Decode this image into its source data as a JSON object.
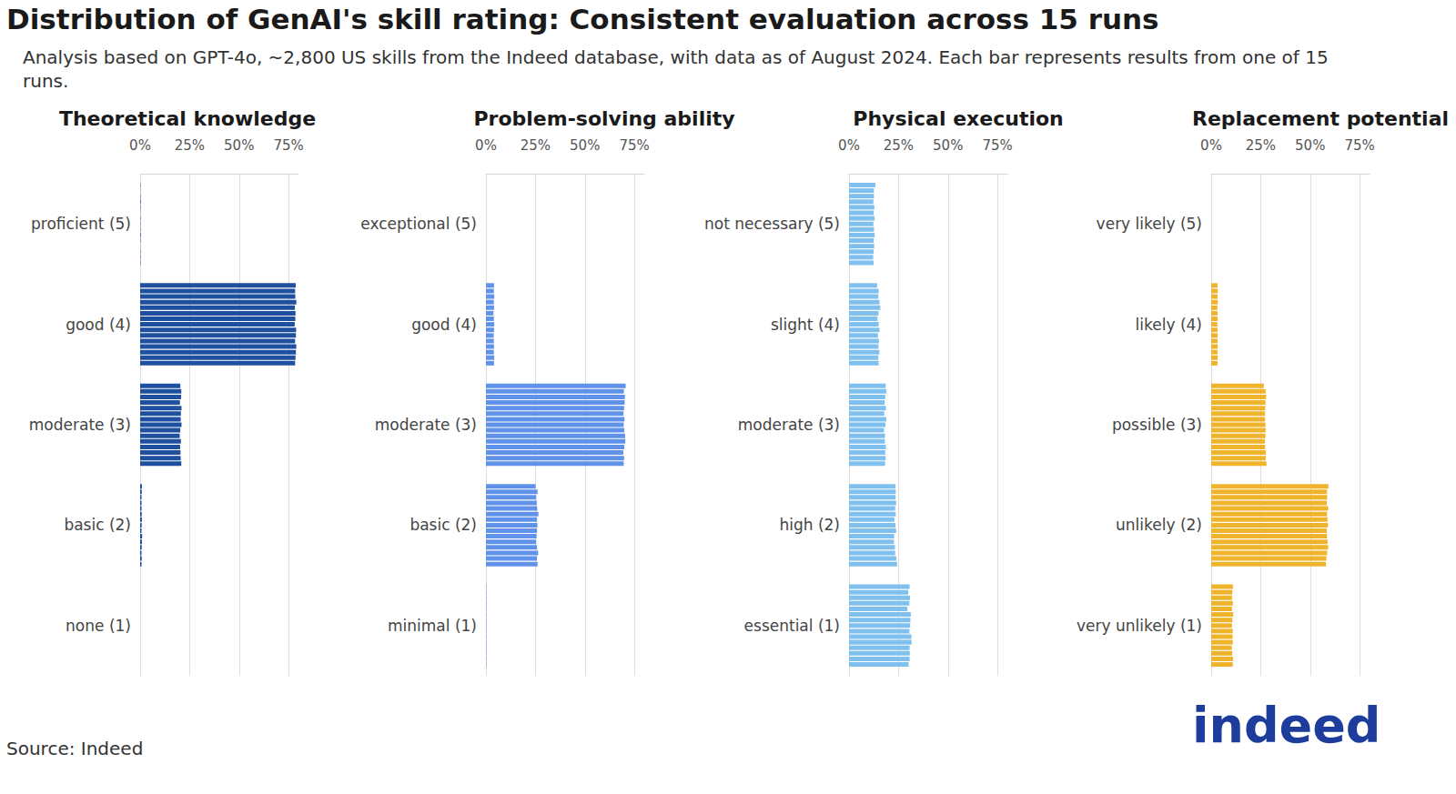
{
  "title": "Distribution of GenAI's skill rating: Consistent evaluation across 15 runs",
  "subtitle": "Analysis based on GPT-4o, ~2,800 US skills from the Indeed database, with data as of August 2024. Each bar represents results from one of 15 runs.",
  "source": "Source: Indeed",
  "logo": "indeed",
  "chart_data": [
    {
      "type": "bar",
      "orientation": "horizontal",
      "title": "Theoretical knowledge",
      "color": "#1f4f9f",
      "grid": true,
      "categories": [
        "proficient (5)",
        "good (4)",
        "moderate (3)",
        "basic (2)",
        "none (1)"
      ],
      "xlim": [
        0,
        80
      ],
      "xticks": [
        {
          "value": 0,
          "label": "0%"
        },
        {
          "value": 25,
          "label": "25%"
        },
        {
          "value": 50,
          "label": "50%"
        },
        {
          "value": 75,
          "label": "75%"
        }
      ],
      "series": [
        {
          "values": [
            0.2,
            78.6,
            20.3,
            0.9,
            0
          ]
        },
        {
          "values": [
            0.1,
            78.3,
            20.8,
            0.8,
            0
          ]
        },
        {
          "values": [
            0.2,
            78.4,
            20.7,
            0.7,
            0
          ]
        },
        {
          "values": [
            0.3,
            78.9,
            20.1,
            0.7,
            0
          ]
        },
        {
          "values": [
            0.2,
            78.2,
            20.9,
            0.7,
            0
          ]
        },
        {
          "values": [
            0.1,
            78.5,
            20.6,
            0.8,
            0
          ]
        },
        {
          "values": [
            0.2,
            78.4,
            20.5,
            0.9,
            0
          ]
        },
        {
          "values": [
            0.2,
            78.1,
            20.9,
            0.8,
            0
          ]
        },
        {
          "values": [
            0.2,
            78.8,
            20.3,
            0.7,
            0
          ]
        },
        {
          "values": [
            0.3,
            78.7,
            20.0,
            1.0,
            0
          ]
        },
        {
          "values": [
            0.2,
            78.3,
            20.6,
            0.9,
            0
          ]
        },
        {
          "values": [
            0.1,
            78.9,
            20.2,
            0.8,
            0
          ]
        },
        {
          "values": [
            0.2,
            78.7,
            20.4,
            0.7,
            0
          ]
        },
        {
          "values": [
            0.2,
            78.5,
            20.5,
            0.8,
            0
          ]
        },
        {
          "values": [
            0.2,
            78.3,
            20.8,
            0.7,
            0
          ]
        }
      ]
    },
    {
      "type": "bar",
      "orientation": "horizontal",
      "title": "Problem-solving ability",
      "color": "#6192ea",
      "grid": true,
      "categories": [
        "exceptional (5)",
        "good (4)",
        "moderate (3)",
        "basic (2)",
        "minimal (1)"
      ],
      "xlim": [
        0,
        80
      ],
      "xticks": [
        {
          "value": 0,
          "label": "0%"
        },
        {
          "value": 25,
          "label": "25%"
        },
        {
          "value": 50,
          "label": "50%"
        },
        {
          "value": 75,
          "label": "75%"
        }
      ],
      "series": [
        {
          "values": [
            0,
            4.1,
            70.6,
            25.1,
            0.2
          ]
        },
        {
          "values": [
            0,
            4.0,
            69.7,
            26.1,
            0.2
          ]
        },
        {
          "values": [
            0,
            4.2,
            70.2,
            25.4,
            0.2
          ]
        },
        {
          "values": [
            0,
            4.0,
            70.1,
            25.7,
            0.2
          ]
        },
        {
          "values": [
            0,
            4.1,
            69.8,
            25.9,
            0.2
          ]
        },
        {
          "values": [
            0,
            3.8,
            69.5,
            26.5,
            0.2
          ]
        },
        {
          "values": [
            0,
            4.0,
            70.0,
            25.8,
            0.2
          ]
        },
        {
          "values": [
            0,
            4.2,
            69.6,
            26.0,
            0.2
          ]
        },
        {
          "values": [
            0,
            4.1,
            69.9,
            25.8,
            0.2
          ]
        },
        {
          "values": [
            0,
            3.9,
            70.3,
            25.6,
            0.2
          ]
        },
        {
          "values": [
            0,
            4.0,
            70.4,
            25.4,
            0.2
          ]
        },
        {
          "values": [
            0,
            4.1,
            69.9,
            25.8,
            0.2
          ]
        },
        {
          "values": [
            0,
            4.0,
            69.4,
            26.4,
            0.2
          ]
        },
        {
          "values": [
            0,
            4.2,
            69.8,
            25.8,
            0.2
          ]
        },
        {
          "values": [
            0,
            4.1,
            69.6,
            26.1,
            0.2
          ]
        }
      ]
    },
    {
      "type": "bar",
      "orientation": "horizontal",
      "title": "Physical execution",
      "color": "#7fc0ee",
      "grid": true,
      "categories": [
        "not necessary (5)",
        "slight (4)",
        "moderate (3)",
        "high (2)",
        "essential (1)"
      ],
      "xlim": [
        0,
        80
      ],
      "xticks": [
        {
          "value": 0,
          "label": "0%"
        },
        {
          "value": 25,
          "label": "25%"
        },
        {
          "value": 50,
          "label": "50%"
        },
        {
          "value": 75,
          "label": "75%"
        }
      ],
      "series": [
        {
          "values": [
            13.3,
            14.2,
            18.5,
            23.4,
            30.6
          ]
        },
        {
          "values": [
            12.6,
            15.0,
            18.9,
            23.6,
            29.9
          ]
        },
        {
          "values": [
            12.6,
            14.8,
            18.3,
            23.5,
            30.8
          ]
        },
        {
          "values": [
            12.3,
            15.4,
            18.0,
            23.8,
            30.5
          ]
        },
        {
          "values": [
            12.8,
            15.8,
            18.6,
            23.3,
            29.5
          ]
        },
        {
          "values": [
            12.5,
            14.9,
            17.8,
            23.6,
            31.2
          ]
        },
        {
          "values": [
            12.9,
            14.4,
            18.8,
            22.9,
            31.0
          ]
        },
        {
          "values": [
            12.3,
            15.0,
            18.4,
            23.4,
            30.9
          ]
        },
        {
          "values": [
            12.6,
            15.4,
            17.7,
            23.8,
            30.5
          ]
        },
        {
          "values": [
            12.9,
            14.6,
            18.2,
            22.8,
            31.5
          ]
        },
        {
          "values": [
            12.5,
            15.1,
            18.1,
            22.7,
            31.6
          ]
        },
        {
          "values": [
            12.7,
            14.9,
            18.6,
            23.2,
            30.6
          ]
        },
        {
          "values": [
            12.4,
            15.3,
            18.3,
            23.3,
            30.7
          ]
        },
        {
          "values": [
            12.2,
            14.8,
            18.5,
            23.9,
            30.6
          ]
        },
        {
          "values": [
            12.4,
            15.0,
            18.2,
            24.3,
            30.1
          ]
        }
      ]
    },
    {
      "type": "bar",
      "orientation": "horizontal",
      "title": "Replacement potential",
      "color": "#efb42c",
      "grid": true,
      "categories": [
        "very likely (5)",
        "likely (4)",
        "possible (3)",
        "unlikely (2)",
        "very unlikely (1)"
      ],
      "xlim": [
        0,
        80
      ],
      "xticks": [
        {
          "value": 0,
          "label": "0%"
        },
        {
          "value": 25,
          "label": "25%"
        },
        {
          "value": 50,
          "label": "50%"
        },
        {
          "value": 75,
          "label": "75%"
        }
      ],
      "series": [
        {
          "values": [
            0,
            3.2,
            26.6,
            59.2,
            11.0
          ]
        },
        {
          "values": [
            0,
            3.3,
            27.5,
            58.5,
            10.7
          ]
        },
        {
          "values": [
            0,
            3.2,
            27.7,
            58.6,
            10.5
          ]
        },
        {
          "values": [
            0,
            3.3,
            27.4,
            58.4,
            10.9
          ]
        },
        {
          "values": [
            0,
            3.1,
            27.3,
            59.1,
            10.5
          ]
        },
        {
          "values": [
            0,
            3.2,
            27.2,
            58.5,
            11.1
          ]
        },
        {
          "values": [
            0,
            3.3,
            27.2,
            58.8,
            10.7
          ]
        },
        {
          "values": [
            0,
            3.1,
            27.4,
            59.0,
            10.5
          ]
        },
        {
          "values": [
            0,
            3.2,
            27.5,
            58.4,
            10.9
          ]
        },
        {
          "values": [
            0,
            3.3,
            27.4,
            58.5,
            10.8
          ]
        },
        {
          "values": [
            0,
            3.2,
            27.1,
            58.8,
            10.9
          ]
        },
        {
          "values": [
            0,
            3.3,
            27.2,
            59.1,
            10.4
          ]
        },
        {
          "values": [
            0,
            3.2,
            27.6,
            58.6,
            10.6
          ]
        },
        {
          "values": [
            0,
            3.3,
            27.5,
            58.2,
            11.0
          ]
        },
        {
          "values": [
            0,
            3.2,
            27.9,
            58.0,
            10.9
          ]
        }
      ]
    }
  ]
}
